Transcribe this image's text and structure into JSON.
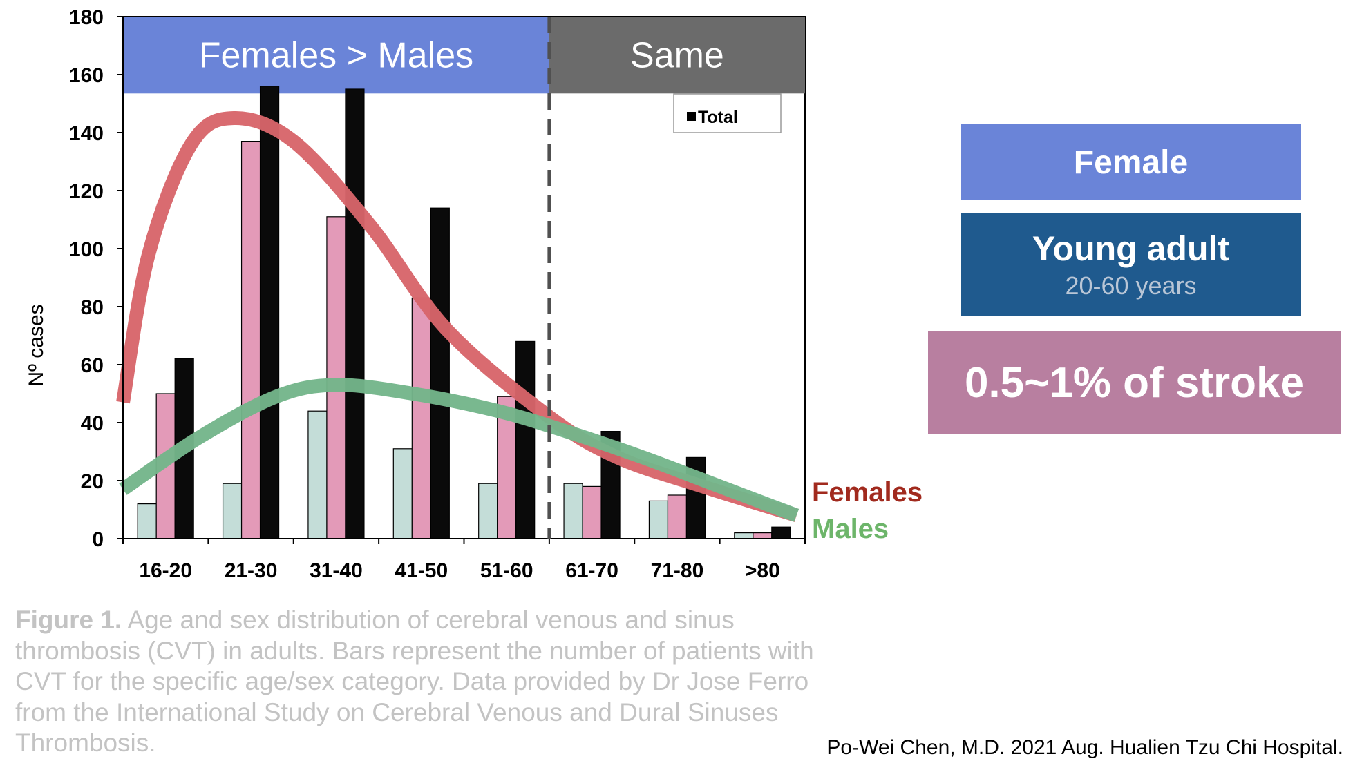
{
  "chart_data": {
    "type": "bar",
    "ylabel": "Nº cases",
    "xlabel": "",
    "ylim": [
      0,
      180
    ],
    "yticks": [
      0,
      20,
      40,
      60,
      80,
      100,
      120,
      140,
      160,
      180
    ],
    "categories": [
      "16-20",
      "21-30",
      "31-40",
      "41-50",
      "51-60",
      "61-70",
      "71-80",
      ">80"
    ],
    "series": [
      {
        "color": "#c4ddd8",
        "values": [
          12,
          19,
          44,
          31,
          19,
          19,
          13,
          2
        ]
      },
      {
        "color": "#e39ab8",
        "values": [
          50,
          137,
          111,
          83,
          49,
          18,
          15,
          2
        ]
      },
      {
        "name": "Total",
        "color": "#0a0a0a",
        "values": [
          62,
          156,
          155,
          114,
          68,
          37,
          28,
          4
        ]
      }
    ],
    "legend": {
      "position": "top-right",
      "label": "Total"
    },
    "curves": [
      {
        "name": "Females",
        "color": "#d7656a",
        "label_color": "#a12a1e",
        "points": [
          [
            -0.5,
            47
          ],
          [
            -0.2,
            98
          ],
          [
            0.3,
            136
          ],
          [
            0.8,
            145
          ],
          [
            1.5,
            137
          ],
          [
            2.4,
            108
          ],
          [
            3.3,
            72
          ],
          [
            4.5,
            42
          ],
          [
            5.3,
            28
          ],
          [
            6.3,
            18
          ],
          [
            7.4,
            8
          ]
        ]
      },
      {
        "name": "Males",
        "color": "#74b58a",
        "label_color": "#6db56a",
        "points": [
          [
            -0.5,
            17
          ],
          [
            0.4,
            35
          ],
          [
            1.3,
            49
          ],
          [
            2.0,
            53
          ],
          [
            2.9,
            50
          ],
          [
            3.9,
            44
          ],
          [
            4.7,
            37
          ],
          [
            5.6,
            28
          ],
          [
            6.5,
            18
          ],
          [
            7.4,
            8
          ]
        ]
      }
    ],
    "regions": [
      {
        "label": "Females > Males",
        "color": "#6a84d8",
        "from": -0.5,
        "to": 4.5
      },
      {
        "label": "Same",
        "color": "#6b6b6b",
        "from": 4.5,
        "to": 7.5
      }
    ],
    "divider_at": 4.5
  },
  "cards": {
    "female": "Female",
    "young_adult": "Young adult",
    "age_range": "20-60 years",
    "stroke_share": "0.5~1% of stroke"
  },
  "caption": {
    "lead": "Figure 1.",
    "text": " Age and sex distribution of cerebral venous and sinus thrombosis (CVT) in adults. Bars represent the number of patients with CVT for the specific age/sex category. Data provided by Dr Jose Ferro from the International Study on Cerebral Venous and Dural Sinuses Thrombosis."
  },
  "credit": "Po-Wei Chen, M.D. 2021 Aug. Hualien Tzu Chi Hospital."
}
